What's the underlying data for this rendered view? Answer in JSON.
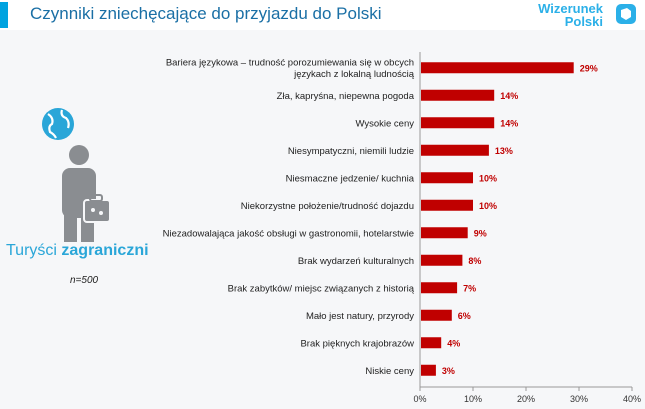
{
  "header": {
    "title": "Czynniki zniechęcające do przyjazdu do Polski",
    "logo_line1": "Wizerunek",
    "logo_line2": "Polski",
    "accent_color": "#00a3e0",
    "logo_color": "#2bb0e8"
  },
  "sidebar": {
    "label_regular": "Turyści ",
    "label_bold": "zagraniczni",
    "sample": "n=500",
    "icons": [
      "globe-icon",
      "tourist-with-suitcase-icon"
    ]
  },
  "chart_data": {
    "type": "bar",
    "orientation": "horizontal",
    "categories": [
      [
        "Bariera językowa – trudność porozumiewania się w obcych",
        "językach z lokalną ludnością"
      ],
      [
        "Zła, kapryśna, niepewna pogoda"
      ],
      [
        "Wysokie ceny"
      ],
      [
        "Niesympatyczni, niemili ludzie"
      ],
      [
        "Niesmaczne jedzenie/ kuchnia"
      ],
      [
        "Niekorzystne położenie/trudność dojazdu"
      ],
      [
        "Niezadowalająca jakość obsługi w gastronomii, hotelarstwie"
      ],
      [
        "Brak wydarzeń kulturalnych"
      ],
      [
        "Brak zabytków/ miejsc związanych z historią"
      ],
      [
        "Mało jest natury, przyrody"
      ],
      [
        "Brak pięknych krajobrazów"
      ],
      [
        "Niskie ceny"
      ]
    ],
    "values": [
      29,
      14,
      14,
      13,
      10,
      10,
      9,
      8,
      7,
      6,
      4,
      3
    ],
    "value_labels": [
      "29%",
      "14%",
      "14%",
      "13%",
      "10%",
      "10%",
      "9%",
      "8%",
      "7%",
      "6%",
      "4%",
      "3%"
    ],
    "xlim": [
      0,
      40
    ],
    "x_ticks": [
      "0%",
      "10%",
      "20%",
      "30%",
      "40%"
    ],
    "bar_color": "#c00000",
    "grid": false
  }
}
